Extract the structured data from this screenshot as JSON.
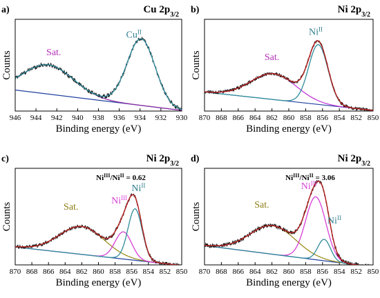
{
  "colors": {
    "experimental": "#111111",
    "envelope": "#b22222",
    "background": "#1f3f9e",
    "satellite_cu": "#8e2fa6",
    "satellite_ni": "#c23bd9",
    "satellite_olive": "#9a8d1f",
    "main_peak": "#2e8b9a",
    "ni3_peak": "#d63fd6",
    "label_cu2": "#2e7d8e",
    "label_sat_cu": "#b12fb8",
    "label_sat_olive": "#8c7d14"
  },
  "chart_data": [
    {
      "type": "line",
      "panel_label": "a)",
      "title_main": "Cu 2p",
      "title_sub": "3/2",
      "xlabel": "Binding energy (eV)",
      "ylabel": "Counts",
      "xlim": [
        946,
        930
      ],
      "ylim": [
        0,
        1.35
      ],
      "xticks": [
        946,
        944,
        942,
        940,
        938,
        936,
        934,
        932,
        930
      ],
      "grid": false,
      "ratio_text": "",
      "background_line": {
        "from": [
          946,
          0.31
        ],
        "to": [
          930,
          0.01
        ]
      },
      "peaks": [
        {
          "id": "sat",
          "center": 942.8,
          "height": 0.43,
          "width": 2.4,
          "label": "Sat.",
          "label_sup": "",
          "label_x": 942.3,
          "label_y": 0.82,
          "color": "satellite_cu",
          "label_color": "label_sat_cu"
        },
        {
          "id": "main",
          "center": 933.9,
          "height": 0.98,
          "width": 1.35,
          "label": "Cu",
          "label_sup": "II",
          "label_x": 934.6,
          "label_y": 1.08,
          "color": "main_peak",
          "label_color": "label_cu2"
        }
      ],
      "show_individual_peaks": false,
      "noise": 0.03
    },
    {
      "type": "line",
      "panel_label": "b)",
      "title_main": "Ni 2p",
      "title_sub": "3/2",
      "xlabel": "Binding energy (eV)",
      "ylabel": "Counts",
      "xlim": [
        870,
        850
      ],
      "ylim": [
        0,
        1.35
      ],
      "xticks": [
        870,
        868,
        866,
        864,
        862,
        860,
        858,
        856,
        854,
        852,
        850
      ],
      "grid": false,
      "ratio_text": "",
      "background_line": {
        "from": [
          870,
          0.28
        ],
        "to": [
          853,
          0.05
        ]
      },
      "peaks": [
        {
          "id": "sat",
          "center": 861.8,
          "height": 0.38,
          "width": 2.7,
          "label": "Sat.",
          "label_sup": "",
          "label_x": 862.0,
          "label_y": 0.75,
          "color": "satellite_ni",
          "label_color": "label_sat_cu"
        },
        {
          "id": "main",
          "center": 856.5,
          "height": 0.88,
          "width": 1.15,
          "label": "Ni",
          "label_sup": "II",
          "label_x": 856.8,
          "label_y": 1.12,
          "color": "main_peak",
          "label_color": "label_cu2"
        }
      ],
      "show_individual_peaks": true,
      "noise": 0.025
    },
    {
      "type": "line",
      "panel_label": "c)",
      "title_main": "Ni 2p",
      "title_sub": "3/2",
      "xlabel": "Binding energy (eV)",
      "ylabel": "Counts",
      "xlim": [
        870,
        850
      ],
      "ylim": [
        0,
        1.35
      ],
      "xticks": [
        870,
        868,
        866,
        864,
        862,
        860,
        858,
        856,
        854,
        852,
        850
      ],
      "grid": false,
      "ratio_text": "Ni",
      "ratio_sup1": "III",
      "ratio_mid": "/Ni",
      "ratio_sup2": "II",
      "ratio_value": " = 0.62",
      "background_line": {
        "from": [
          870,
          0.25
        ],
        "to": [
          853,
          0.03
        ]
      },
      "peaks": [
        {
          "id": "sat",
          "center": 862.0,
          "height": 0.39,
          "width": 2.7,
          "label": "Sat.",
          "label_sup": "",
          "label_x": 863.3,
          "label_y": 0.77,
          "color": "satellite_olive",
          "label_color": "label_sat_olive"
        },
        {
          "id": "ni3",
          "center": 857.0,
          "height": 0.38,
          "width": 1.0,
          "label": "Ni",
          "label_sup": "III",
          "label_x": 857.5,
          "label_y": 0.86,
          "color": "ni3_peak",
          "label_color": "ni3_peak"
        },
        {
          "id": "ni2",
          "center": 855.6,
          "height": 0.72,
          "width": 0.85,
          "label": "Ni",
          "label_sup": "II",
          "label_x": 855.2,
          "label_y": 1.03,
          "color": "main_peak",
          "label_color": "label_cu2"
        }
      ],
      "show_individual_peaks": true,
      "noise": 0.025
    },
    {
      "type": "line",
      "panel_label": "d)",
      "title_main": "Ni 2p",
      "title_sub": "3/2",
      "xlabel": "Binding energy (eV)",
      "ylabel": "Counts",
      "xlim": [
        870,
        850
      ],
      "ylim": [
        0,
        1.35
      ],
      "xticks": [
        870,
        868,
        866,
        864,
        862,
        860,
        858,
        856,
        854,
        852,
        850
      ],
      "grid": false,
      "ratio_text": "Ni",
      "ratio_sup1": "III",
      "ratio_mid": "/Ni",
      "ratio_sup2": "II",
      "ratio_value": " = 3.06",
      "background_line": {
        "from": [
          870,
          0.27
        ],
        "to": [
          854,
          0.03
        ]
      },
      "peaks": [
        {
          "id": "sat",
          "center": 861.9,
          "height": 0.4,
          "width": 2.7,
          "label": "Sat.",
          "label_sup": "",
          "label_x": 863.2,
          "label_y": 0.8,
          "color": "satellite_olive",
          "label_color": "label_sat_olive"
        },
        {
          "id": "ni3",
          "center": 856.8,
          "height": 0.88,
          "width": 1.2,
          "label": "Ni",
          "label_sup": "III",
          "label_x": 857.6,
          "label_y": 1.06,
          "color": "ni3_peak",
          "label_color": "ni3_peak"
        },
        {
          "id": "ni2",
          "center": 855.8,
          "height": 0.3,
          "width": 0.75,
          "label": "Ni",
          "label_sup": "II",
          "label_x": 854.6,
          "label_y": 0.58,
          "color": "main_peak",
          "label_color": "label_cu2"
        }
      ],
      "show_individual_peaks": true,
      "noise": 0.03
    }
  ]
}
